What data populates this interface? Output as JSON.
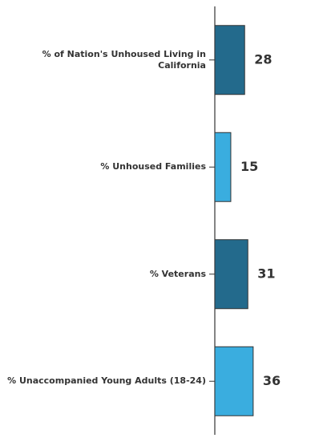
{
  "chart_data": {
    "type": "bar",
    "orientation": "horizontal",
    "categories": [
      "% of Nation's Unhoused Living in California",
      "% Unhoused Families",
      "% Veterans",
      "% Unaccompanied Young Adults (18-24)"
    ],
    "values": [
      28,
      15,
      31,
      36
    ],
    "colors": [
      "#236a8c",
      "#3aaddf",
      "#236a8c",
      "#3aaddf"
    ]
  }
}
